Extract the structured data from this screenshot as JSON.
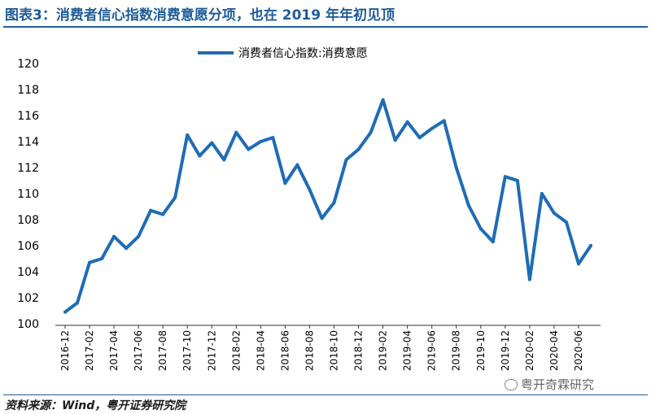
{
  "header": {
    "title": "图表3：消费者信心指数消费意愿分项，也在 2019 年年初见顶"
  },
  "footer": {
    "source": "资料来源：Wind，粤开证券研究院",
    "watermark": "粤开奇霖研究",
    "watermark_icon": "wechat-icon"
  },
  "colors": {
    "title": "#1F5C99",
    "line": "#1F6CB5",
    "axis_text": "#000000"
  },
  "chart_data": {
    "type": "line",
    "title": "",
    "xlabel": "",
    "ylabel": "",
    "ylim": [
      100,
      120
    ],
    "yticks": [
      "100",
      "102",
      "104",
      "106",
      "108",
      "110",
      "112",
      "114",
      "116",
      "118",
      "120"
    ],
    "xtick_labels": [
      "2016-12",
      "2017-02",
      "2017-04",
      "2017-06",
      "2017-08",
      "2017-10",
      "2017-12",
      "2018-02",
      "2018-04",
      "2018-06",
      "2018-08",
      "2018-10",
      "2018-12",
      "2019-02",
      "2019-04",
      "2019-06",
      "2019-08",
      "2019-10",
      "2019-12",
      "2020-02",
      "2020-04",
      "2020-06"
    ],
    "legend": {
      "placement": "top-center",
      "label": "消费者信心指数:消费意愿"
    },
    "grid": false,
    "series": [
      {
        "name": "消费者信心指数:消费意愿",
        "x": [
          "2016-12",
          "2017-01",
          "2017-02",
          "2017-03",
          "2017-04",
          "2017-05",
          "2017-06",
          "2017-07",
          "2017-08",
          "2017-09",
          "2017-10",
          "2017-11",
          "2017-12",
          "2018-01",
          "2018-02",
          "2018-03",
          "2018-04",
          "2018-05",
          "2018-06",
          "2018-07",
          "2018-08",
          "2018-09",
          "2018-10",
          "2018-11",
          "2018-12",
          "2019-01",
          "2019-02",
          "2019-03",
          "2019-04",
          "2019-05",
          "2019-06",
          "2019-07",
          "2019-08",
          "2019-09",
          "2019-10",
          "2019-11",
          "2019-12",
          "2020-01",
          "2020-02",
          "2020-03",
          "2020-04",
          "2020-05",
          "2020-06",
          "2020-07"
        ],
        "values": [
          100.9,
          101.6,
          104.7,
          105.0,
          106.7,
          105.8,
          106.7,
          108.7,
          108.4,
          109.7,
          114.5,
          112.9,
          113.9,
          112.6,
          114.7,
          113.4,
          114.0,
          114.3,
          110.8,
          112.2,
          110.3,
          108.1,
          109.3,
          112.6,
          113.4,
          114.7,
          117.2,
          114.1,
          115.5,
          114.3,
          115.0,
          115.6,
          112.0,
          109.1,
          107.3,
          106.3,
          111.3,
          111.0,
          103.4,
          110.0,
          108.5,
          107.8,
          104.6,
          106.0
        ]
      }
    ]
  }
}
